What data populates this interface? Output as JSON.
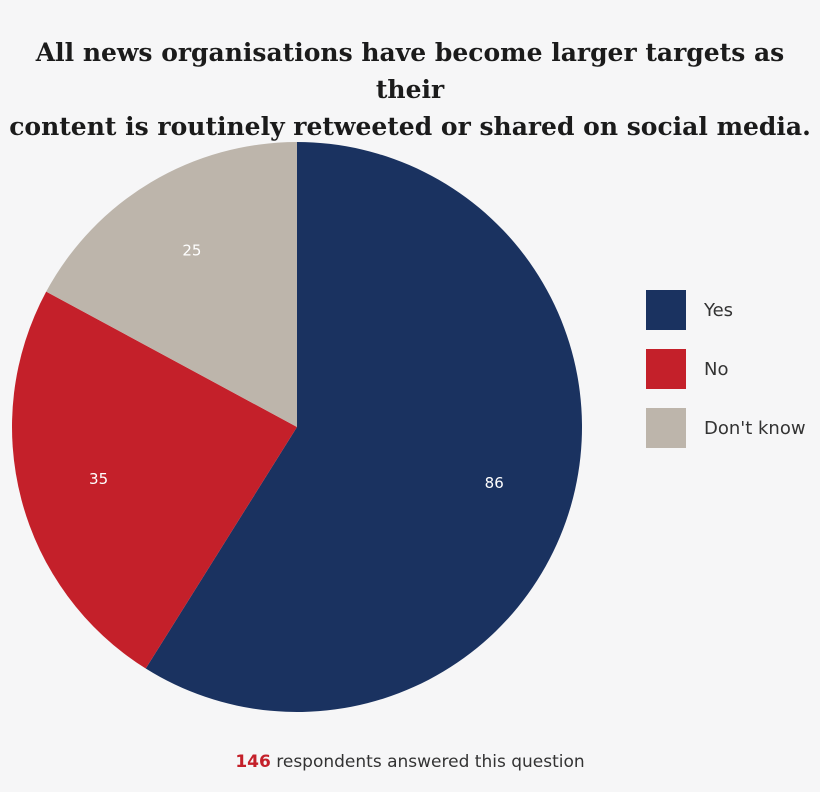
{
  "chart_data": {
    "type": "pie",
    "title": "All news organisations have become larger targets as their content is routinely retweeted or shared on social media.",
    "title_lines": [
      "All news organisations have become larger targets as their",
      "content is routinely retweeted or shared on social media."
    ],
    "categories": [
      "Yes",
      "No",
      "Don't know"
    ],
    "values": [
      86,
      35,
      25
    ],
    "colors": [
      "#1a3260",
      "#c4202a",
      "#bdb5ab"
    ],
    "legend": [
      {
        "label": "Yes",
        "color": "#1a3260"
      },
      {
        "label": "No",
        "color": "#c4202a"
      },
      {
        "label": "Don't know",
        "color": "#bdb5ab"
      }
    ],
    "legend_position": "right"
  },
  "footer": {
    "count": "146",
    "text": " respondents answered this question"
  }
}
